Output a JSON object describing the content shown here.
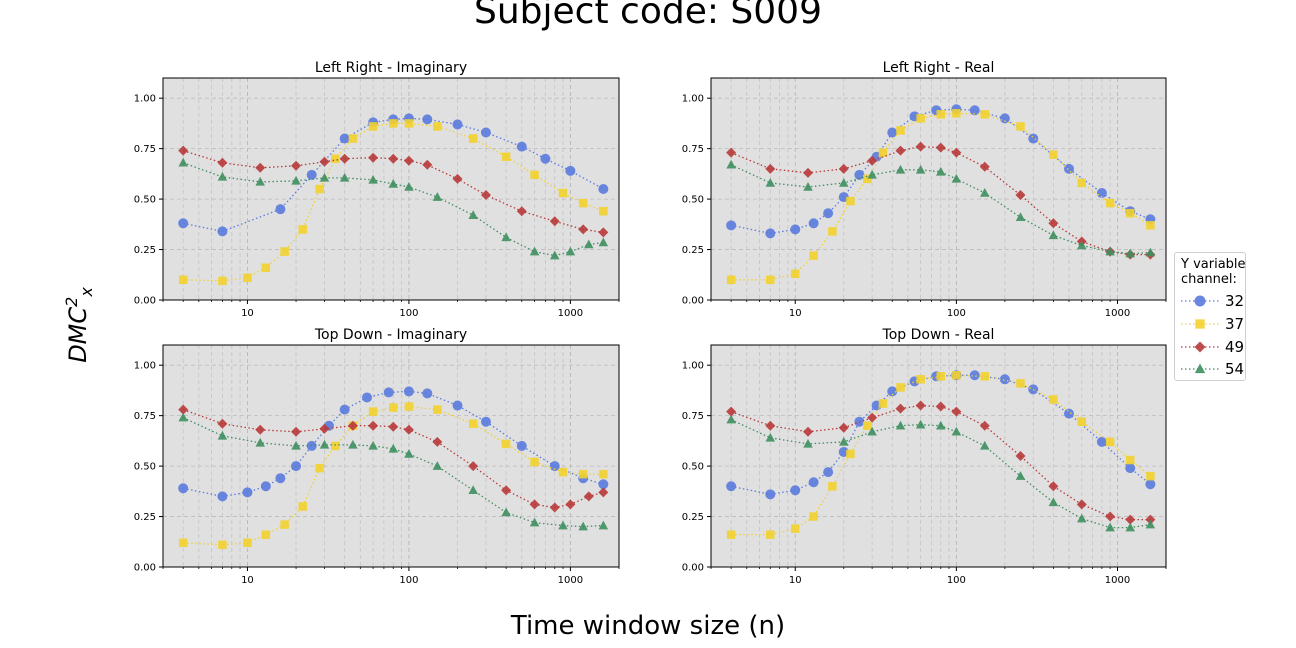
{
  "figure": {
    "suptitle": "Subject code: S009",
    "xlabel": "Time window size (n)",
    "ylabel_base": "DMC",
    "ylabel_sup": "2",
    "ylabel_sub": "x"
  },
  "legend": {
    "title_line1": "Y variable",
    "title_line2": "channel:",
    "placement": "right-center"
  },
  "series_styles": [
    {
      "name": "32",
      "color": "#5b7bde",
      "marker": "circle"
    },
    {
      "name": "37",
      "color": "#f2d12e",
      "marker": "square"
    },
    {
      "name": "49",
      "color": "#b83a3a",
      "marker": "diamond"
    },
    {
      "name": "54",
      "color": "#3f8f5f",
      "marker": "triangle"
    }
  ],
  "chart_data": [
    {
      "type": "scatter",
      "title": "Left Right - Imaginary",
      "x_scale": "log",
      "xlim": [
        3,
        2000
      ],
      "ylim": [
        0,
        1.1
      ],
      "x_ticks": [
        "10",
        "100",
        "1000"
      ],
      "y_ticks": [
        "0.00",
        "0.25",
        "0.50",
        "0.75",
        "1.00"
      ],
      "grid": true,
      "series": [
        {
          "name": "32",
          "x": [
            4,
            7,
            16,
            25,
            40,
            60,
            80,
            100,
            130,
            200,
            300,
            500,
            700,
            1000,
            1600
          ],
          "y": [
            0.38,
            0.34,
            0.45,
            0.62,
            0.8,
            0.88,
            0.895,
            0.9,
            0.895,
            0.87,
            0.83,
            0.76,
            0.7,
            0.64,
            0.55
          ]
        },
        {
          "name": "37",
          "x": [
            4,
            7,
            10,
            13,
            17,
            22,
            28,
            35,
            45,
            60,
            80,
            100,
            150,
            250,
            400,
            600,
            900,
            1200,
            1600
          ],
          "y": [
            0.1,
            0.095,
            0.11,
            0.16,
            0.24,
            0.35,
            0.55,
            0.7,
            0.8,
            0.86,
            0.875,
            0.875,
            0.86,
            0.8,
            0.71,
            0.62,
            0.53,
            0.48,
            0.44
          ]
        },
        {
          "name": "49",
          "x": [
            4,
            7,
            12,
            20,
            30,
            40,
            60,
            80,
            100,
            130,
            200,
            300,
            500,
            800,
            1200,
            1600
          ],
          "y": [
            0.74,
            0.68,
            0.655,
            0.665,
            0.685,
            0.7,
            0.705,
            0.7,
            0.69,
            0.67,
            0.6,
            0.52,
            0.44,
            0.39,
            0.35,
            0.335
          ]
        },
        {
          "name": "54",
          "x": [
            4,
            7,
            12,
            20,
            30,
            40,
            60,
            80,
            100,
            150,
            250,
            400,
            600,
            800,
            1000,
            1300,
            1600
          ],
          "y": [
            0.68,
            0.61,
            0.585,
            0.59,
            0.605,
            0.605,
            0.595,
            0.575,
            0.56,
            0.51,
            0.42,
            0.31,
            0.24,
            0.22,
            0.24,
            0.275,
            0.285
          ]
        }
      ]
    },
    {
      "type": "scatter",
      "title": "Left Right - Real",
      "x_scale": "log",
      "xlim": [
        3,
        2000
      ],
      "ylim": [
        0,
        1.1
      ],
      "x_ticks": [
        "10",
        "100",
        "1000"
      ],
      "y_ticks": [
        "0.00",
        "0.25",
        "0.50",
        "0.75",
        "1.00"
      ],
      "grid": true,
      "series": [
        {
          "name": "32",
          "x": [
            4,
            7,
            10,
            13,
            16,
            20,
            25,
            32,
            40,
            55,
            75,
            100,
            130,
            200,
            300,
            500,
            800,
            1200,
            1600
          ],
          "y": [
            0.37,
            0.33,
            0.35,
            0.38,
            0.43,
            0.51,
            0.62,
            0.71,
            0.83,
            0.91,
            0.94,
            0.945,
            0.94,
            0.9,
            0.8,
            0.65,
            0.53,
            0.44,
            0.4
          ]
        },
        {
          "name": "37",
          "x": [
            4,
            7,
            10,
            13,
            17,
            22,
            28,
            35,
            45,
            60,
            80,
            100,
            150,
            250,
            400,
            600,
            900,
            1200,
            1600
          ],
          "y": [
            0.1,
            0.1,
            0.13,
            0.22,
            0.34,
            0.49,
            0.6,
            0.73,
            0.84,
            0.9,
            0.92,
            0.925,
            0.92,
            0.86,
            0.72,
            0.58,
            0.48,
            0.43,
            0.37
          ]
        },
        {
          "name": "49",
          "x": [
            4,
            7,
            12,
            20,
            30,
            45,
            60,
            80,
            100,
            150,
            250,
            400,
            600,
            900,
            1200,
            1600
          ],
          "y": [
            0.73,
            0.65,
            0.63,
            0.65,
            0.69,
            0.74,
            0.76,
            0.755,
            0.73,
            0.66,
            0.52,
            0.38,
            0.29,
            0.24,
            0.225,
            0.225
          ]
        },
        {
          "name": "54",
          "x": [
            4,
            7,
            12,
            20,
            30,
            45,
            60,
            80,
            100,
            150,
            250,
            400,
            600,
            900,
            1200,
            1600
          ],
          "y": [
            0.67,
            0.58,
            0.56,
            0.58,
            0.62,
            0.645,
            0.645,
            0.635,
            0.6,
            0.53,
            0.41,
            0.32,
            0.27,
            0.24,
            0.23,
            0.235
          ]
        }
      ]
    },
    {
      "type": "scatter",
      "title": "Top Down - Imaginary",
      "x_scale": "log",
      "xlim": [
        3,
        2000
      ],
      "ylim": [
        0,
        1.1
      ],
      "x_ticks": [
        "10",
        "100",
        "1000"
      ],
      "y_ticks": [
        "0.00",
        "0.25",
        "0.50",
        "0.75",
        "1.00"
      ],
      "grid": true,
      "series": [
        {
          "name": "32",
          "x": [
            4,
            7,
            10,
            13,
            16,
            20,
            25,
            32,
            40,
            55,
            75,
            100,
            130,
            200,
            300,
            500,
            800,
            1200,
            1600
          ],
          "y": [
            0.39,
            0.35,
            0.37,
            0.4,
            0.44,
            0.5,
            0.6,
            0.7,
            0.78,
            0.84,
            0.865,
            0.87,
            0.86,
            0.8,
            0.72,
            0.6,
            0.5,
            0.44,
            0.41
          ]
        },
        {
          "name": "37",
          "x": [
            4,
            7,
            10,
            13,
            17,
            22,
            28,
            35,
            45,
            60,
            80,
            100,
            150,
            250,
            400,
            600,
            900,
            1200,
            1600
          ],
          "y": [
            0.12,
            0.11,
            0.12,
            0.16,
            0.21,
            0.3,
            0.49,
            0.6,
            0.7,
            0.77,
            0.79,
            0.795,
            0.78,
            0.71,
            0.61,
            0.52,
            0.47,
            0.46,
            0.46
          ]
        },
        {
          "name": "49",
          "x": [
            4,
            7,
            12,
            20,
            30,
            45,
            60,
            80,
            100,
            150,
            250,
            400,
            600,
            800,
            1000,
            1300,
            1600
          ],
          "y": [
            0.78,
            0.71,
            0.68,
            0.67,
            0.685,
            0.7,
            0.7,
            0.695,
            0.68,
            0.62,
            0.5,
            0.38,
            0.31,
            0.295,
            0.31,
            0.35,
            0.37
          ]
        },
        {
          "name": "54",
          "x": [
            4,
            7,
            12,
            20,
            30,
            45,
            60,
            80,
            100,
            150,
            250,
            400,
            600,
            900,
            1200,
            1600
          ],
          "y": [
            0.74,
            0.65,
            0.615,
            0.6,
            0.605,
            0.605,
            0.6,
            0.585,
            0.56,
            0.5,
            0.38,
            0.27,
            0.22,
            0.205,
            0.2,
            0.205
          ]
        }
      ]
    },
    {
      "type": "scatter",
      "title": "Top Down - Real",
      "x_scale": "log",
      "xlim": [
        3,
        2000
      ],
      "ylim": [
        0,
        1.1
      ],
      "x_ticks": [
        "10",
        "100",
        "1000"
      ],
      "y_ticks": [
        "0.00",
        "0.25",
        "0.50",
        "0.75",
        "1.00"
      ],
      "grid": true,
      "series": [
        {
          "name": "32",
          "x": [
            4,
            7,
            10,
            13,
            16,
            20,
            25,
            32,
            40,
            55,
            75,
            100,
            130,
            200,
            300,
            500,
            800,
            1200,
            1600
          ],
          "y": [
            0.4,
            0.36,
            0.38,
            0.42,
            0.47,
            0.57,
            0.72,
            0.8,
            0.87,
            0.92,
            0.945,
            0.95,
            0.95,
            0.93,
            0.88,
            0.76,
            0.62,
            0.49,
            0.41
          ]
        },
        {
          "name": "37",
          "x": [
            4,
            7,
            10,
            13,
            17,
            22,
            28,
            35,
            45,
            60,
            80,
            100,
            150,
            250,
            400,
            600,
            900,
            1200,
            1600
          ],
          "y": [
            0.16,
            0.16,
            0.19,
            0.25,
            0.4,
            0.56,
            0.7,
            0.81,
            0.89,
            0.93,
            0.945,
            0.95,
            0.945,
            0.91,
            0.83,
            0.72,
            0.62,
            0.53,
            0.45
          ]
        },
        {
          "name": "49",
          "x": [
            4,
            7,
            12,
            20,
            30,
            45,
            60,
            80,
            100,
            150,
            250,
            400,
            600,
            900,
            1200,
            1600
          ],
          "y": [
            0.77,
            0.7,
            0.67,
            0.69,
            0.74,
            0.785,
            0.8,
            0.795,
            0.77,
            0.7,
            0.55,
            0.4,
            0.31,
            0.25,
            0.235,
            0.235
          ]
        },
        {
          "name": "54",
          "x": [
            4,
            7,
            12,
            20,
            30,
            45,
            60,
            80,
            100,
            150,
            250,
            400,
            600,
            900,
            1200,
            1600
          ],
          "y": [
            0.73,
            0.64,
            0.61,
            0.62,
            0.67,
            0.7,
            0.705,
            0.7,
            0.67,
            0.6,
            0.45,
            0.32,
            0.24,
            0.195,
            0.195,
            0.21
          ]
        }
      ]
    }
  ]
}
